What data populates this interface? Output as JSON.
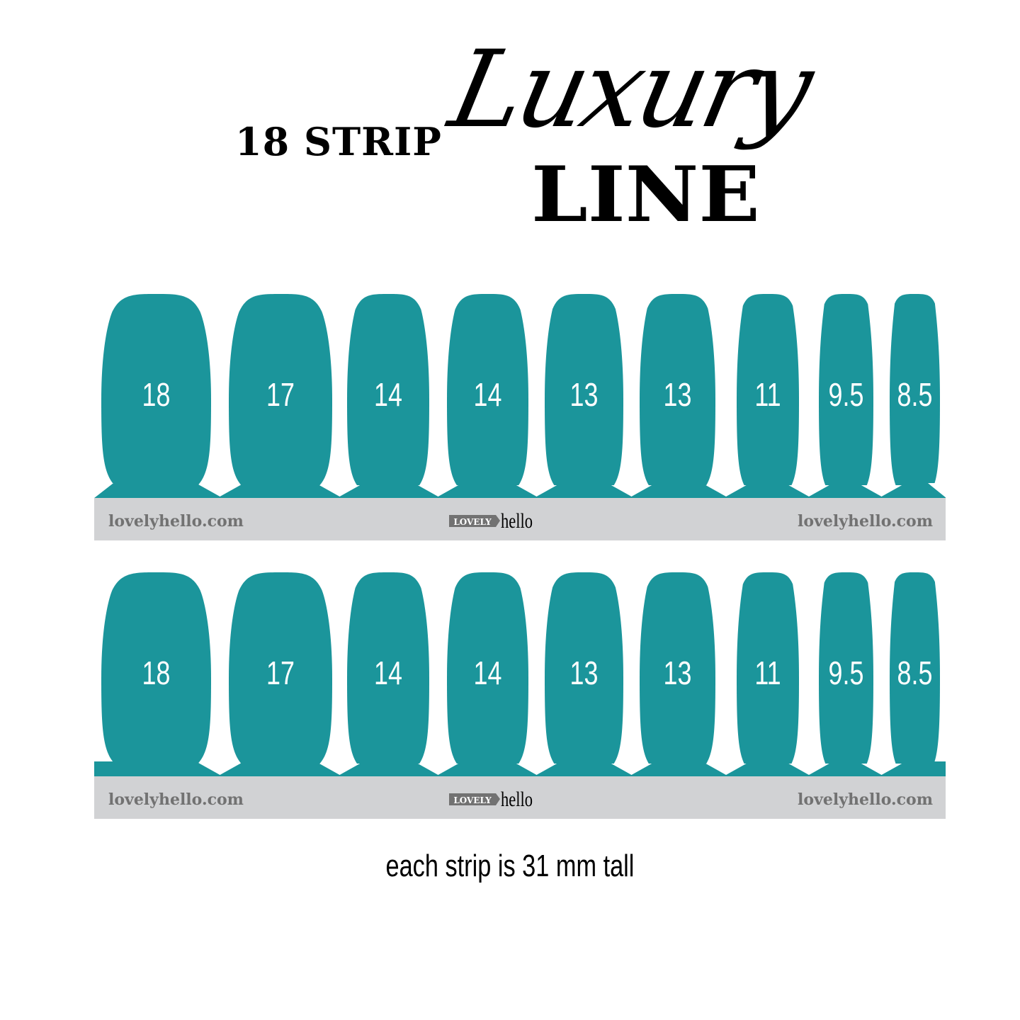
{
  "title": {
    "prefix": "18 STRIP",
    "script": "Luxury",
    "main": "LINE"
  },
  "colors": {
    "nail": "#1b959b",
    "band": "#d1d2d4",
    "brand_text": "#727272"
  },
  "strips": [
    {
      "sizes": [
        "18",
        "17",
        "14",
        "14",
        "13",
        "13",
        "11",
        "9.5",
        "8.5"
      ],
      "band_left": "lovelyhello.com",
      "band_right": "lovelyhello.com",
      "logo_box": "LOVELY",
      "logo_word": "hello"
    },
    {
      "sizes": [
        "18",
        "17",
        "14",
        "14",
        "13",
        "13",
        "11",
        "9.5",
        "8.5"
      ],
      "band_left": "lovelyhello.com",
      "band_right": "lovelyhello.com",
      "logo_box": "LOVELY",
      "logo_word": "hello"
    }
  ],
  "footer": "each strip is 31 mm tall"
}
